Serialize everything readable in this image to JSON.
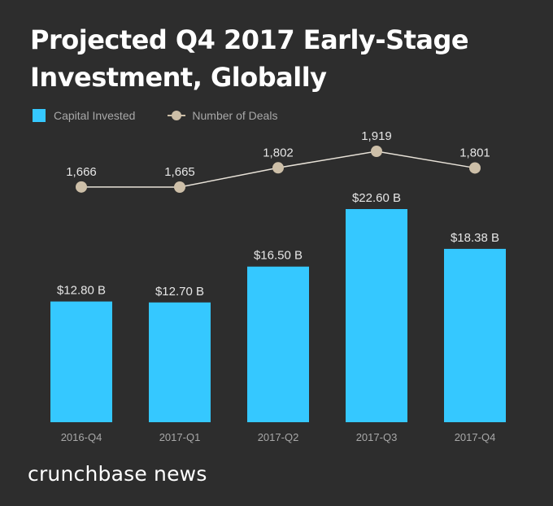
{
  "header": {
    "title": "Projected Q4 2017 Early-Stage Investment, Globally"
  },
  "legend": {
    "bar_label": "Capital Invested",
    "line_label": "Number of Deals"
  },
  "brand": {
    "name": "crunchbase news"
  },
  "colors": {
    "background": "#2d2d2d",
    "bar": "#35c8ff",
    "line": "#cdbfa8",
    "label": "#e6e6e6",
    "tick": "#a8a8a8"
  },
  "chart_data": {
    "type": "bar",
    "title": "Projected Q4 2017 Early-Stage Investment, Globally",
    "categories": [
      "2016-Q4",
      "2017-Q1",
      "2017-Q2",
      "2017-Q3",
      "2017-Q4"
    ],
    "series": [
      {
        "name": "Capital Invested",
        "type": "bar",
        "values": [
          12.8,
          12.7,
          16.5,
          22.6,
          18.38
        ],
        "labels": [
          "$12.80 B",
          "$12.70 B",
          "$16.50 B",
          "$22.60 B",
          "$18.38 B"
        ]
      },
      {
        "name": "Number of Deals",
        "type": "line",
        "values": [
          1666,
          1665,
          1802,
          1919,
          1801
        ],
        "labels": [
          "1,666",
          "1,665",
          "1,802",
          "1,919",
          "1,801"
        ]
      }
    ],
    "legend": "top-left",
    "grid": false,
    "ylim_bar": [
      0,
      22.6
    ],
    "ylim_line": [
      1000,
      1919
    ]
  }
}
